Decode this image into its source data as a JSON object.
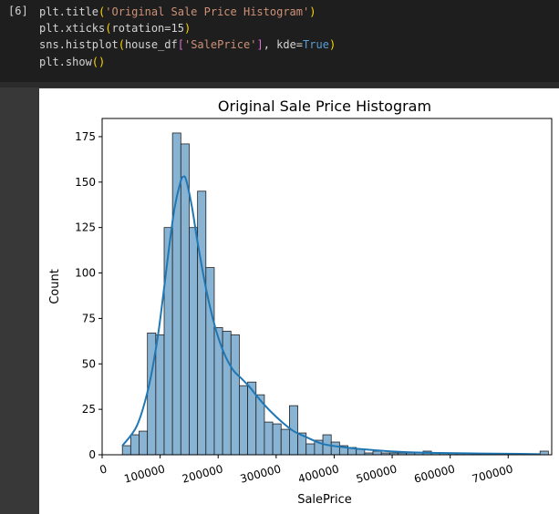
{
  "cell": {
    "execution_count": "[6]",
    "code_lines": [
      [
        {
          "t": "plt.title"
        },
        {
          "t": "(",
          "c": "tok-paren"
        },
        {
          "t": "'Original Sale Price Histogram'",
          "c": "tok-str"
        },
        {
          "t": ")",
          "c": "tok-paren"
        }
      ],
      [
        {
          "t": "plt.xticks"
        },
        {
          "t": "(",
          "c": "tok-paren"
        },
        {
          "t": "rotation=15"
        },
        {
          "t": ")",
          "c": "tok-paren"
        }
      ],
      [
        {
          "t": "sns.histplot"
        },
        {
          "t": "(",
          "c": "tok-paren"
        },
        {
          "t": "house_df"
        },
        {
          "t": "[",
          "c": "tok-bracket"
        },
        {
          "t": "'SalePrice'",
          "c": "tok-str"
        },
        {
          "t": "]",
          "c": "tok-bracket"
        },
        {
          "t": ", kde="
        },
        {
          "t": "True",
          "c": "tok-kw"
        },
        {
          "t": ")",
          "c": "tok-paren"
        }
      ],
      [
        {
          "t": "plt.show"
        },
        {
          "t": "()",
          "c": "tok-paren"
        }
      ]
    ]
  },
  "colors": {
    "bar_fill": "#88b3d3",
    "bar_edge": "#222222",
    "kde_line": "#1f77b4"
  },
  "chart_data": {
    "type": "bar",
    "title": "Original Sale Price Histogram",
    "xlabel": "SalePrice",
    "ylabel": "Count",
    "xlim": [
      0,
      775000
    ],
    "ylim": [
      0,
      185
    ],
    "xticks": [
      0,
      100000,
      200000,
      300000,
      400000,
      500000,
      600000,
      700000
    ],
    "xtick_labels": [
      "0",
      "100000",
      "200000",
      "300000",
      "400000",
      "500000",
      "600000",
      "700000"
    ],
    "xtick_rotation": 15,
    "yticks": [
      0,
      25,
      50,
      75,
      100,
      125,
      150,
      175
    ],
    "ytick_labels": [
      "0",
      "25",
      "50",
      "75",
      "100",
      "125",
      "150",
      "175"
    ],
    "bin_start": 34900,
    "bin_width": 14400,
    "counts": [
      5,
      11,
      13,
      67,
      66,
      125,
      177,
      171,
      125,
      145,
      103,
      70,
      68,
      66,
      38,
      40,
      33,
      18,
      17,
      14,
      27,
      12,
      6,
      8,
      11,
      7,
      5,
      4,
      3,
      1,
      2,
      1,
      1,
      1,
      1,
      1,
      2,
      1,
      1,
      1,
      1,
      0,
      0,
      0,
      0,
      0,
      0,
      0,
      0,
      0,
      2
    ],
    "kde": {
      "x": [
        34900,
        60000,
        80000,
        95000,
        105000,
        115000,
        125000,
        135000,
        140000,
        145000,
        155000,
        165000,
        180000,
        195000,
        210000,
        225000,
        240000,
        255000,
        270000,
        290000,
        310000,
        330000,
        350000,
        380000,
        420000,
        470000,
        520000,
        580000,
        650000,
        720000,
        755000
      ],
      "y": [
        5,
        16,
        37,
        63,
        87,
        113,
        136,
        150,
        153,
        151,
        136,
        116,
        90,
        70,
        56,
        47,
        42,
        37,
        31,
        24,
        18,
        13,
        10,
        6,
        4,
        2.5,
        1.5,
        1,
        0.7,
        0.5,
        0.3
      ]
    }
  }
}
